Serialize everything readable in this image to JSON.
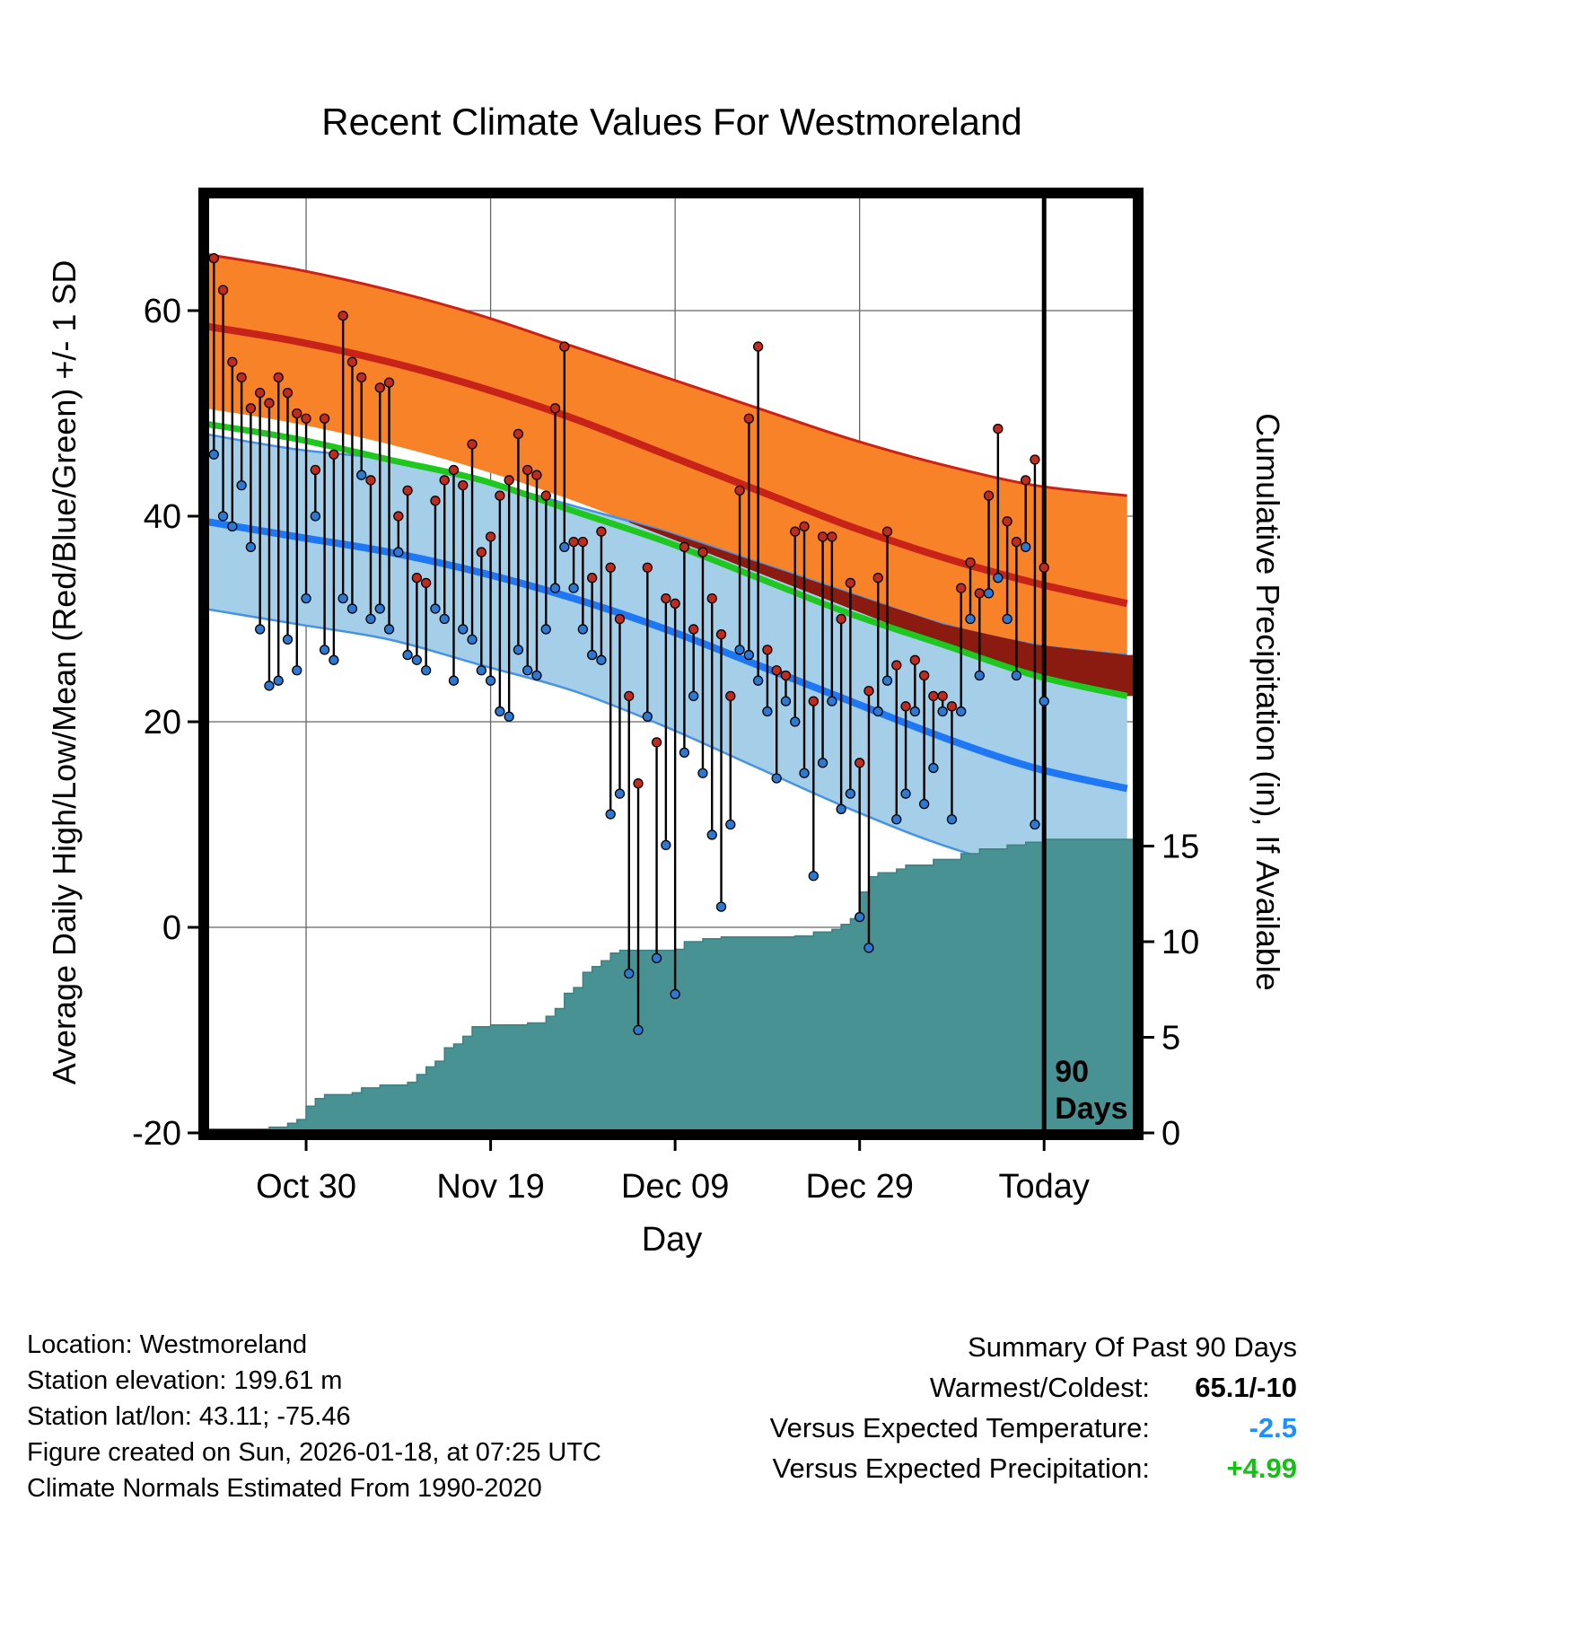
{
  "title": "Recent Climate Values For Westmoreland",
  "axes": {
    "left_label": "Average Daily High/Low/Mean (Red/Blue/Green) +/- 1 SD",
    "right_label": "Cumulative Precipitation (in), If Available",
    "x_label": "Day",
    "x_ticks": [
      {
        "label": "Oct 30",
        "day": 11
      },
      {
        "label": "Nov 19",
        "day": 31
      },
      {
        "label": "Dec 09",
        "day": 51
      },
      {
        "label": "Dec 29",
        "day": 71
      },
      {
        "label": "Today",
        "day": 91
      }
    ],
    "left_ticks": [
      60,
      40,
      20,
      0,
      -20
    ],
    "right_ticks": [
      15,
      10,
      5,
      0
    ]
  },
  "annotation": {
    "line1": "90",
    "line2": "Days"
  },
  "footer": {
    "lines": [
      "Location: Westmoreland",
      "Station elevation: 199.61 m",
      "Station lat/lon: 43.11; -75.46",
      "Figure created on Sun, 2026-01-18, at 07:25 UTC",
      "Climate Normals Estimated From 1990-2020"
    ]
  },
  "summary": {
    "title": "Summary Of Past 90 Days",
    "rows": [
      {
        "label": "Warmest/Coldest:",
        "value": "65.1/-10",
        "color": "#000000"
      },
      {
        "label": "Versus Expected Temperature:",
        "value": "-2.5",
        "color": "#1e8fff"
      },
      {
        "label": "Versus Expected Precipitation:",
        "value": "+4.99",
        "color": "#12c112"
      }
    ]
  },
  "colors": {
    "high_band": "#f88228",
    "high_line": "#c82319",
    "overlap_band": "#8b1a11",
    "low_band": "#a5cee8",
    "low_band_edge": "#4593e6",
    "low_line": "#1e78f5",
    "mean_line": "#1ec81e",
    "precip_fill": "#489294",
    "precip_edge": "#3d8082",
    "high_dot": "#bf2b1f",
    "low_dot": "#2d78d2",
    "range_line": "#000000",
    "grid": "#666666"
  },
  "chart_data": {
    "type": "line",
    "title": "Recent Climate Values For Westmoreland",
    "xlabel": "Day",
    "ylabel_left": "Average Daily High/Low/Mean (Red/Blue/Green) +/- 1 SD",
    "ylabel_right": "Cumulative Precipitation (in), If Available",
    "x_domain": [
      0,
      101
    ],
    "today_day": 91,
    "temp_axis": {
      "ticks": [
        -20,
        0,
        20,
        40,
        60
      ],
      "ylim": [
        -20,
        71
      ]
    },
    "precip_axis": {
      "ticks": [
        0,
        5,
        10,
        15
      ],
      "ylim": [
        0,
        22
      ]
    },
    "normals": {
      "sample_days": [
        0,
        10,
        20,
        30,
        40,
        50,
        60,
        70,
        80,
        90,
        100
      ],
      "high_upper": [
        65.5,
        64,
        62,
        59.5,
        56.5,
        53.5,
        50.5,
        47.5,
        45,
        43,
        42
      ],
      "high_mean": [
        58.5,
        57,
        55,
        52.5,
        49.5,
        46,
        42.5,
        39,
        36,
        33.5,
        31.5
      ],
      "high_lower": [
        50.5,
        49,
        47,
        44.5,
        41.5,
        38,
        34.5,
        31,
        27.5,
        24.5,
        22.5
      ],
      "low_upper": [
        48,
        46.5,
        45.5,
        43.5,
        41,
        38.5,
        35.5,
        32.5,
        29.5,
        27.5,
        26.5
      ],
      "low_mean": [
        39.5,
        38,
        36.5,
        34.5,
        32,
        29,
        25.5,
        22,
        18.5,
        15.5,
        13.5
      ],
      "low_lower": [
        31,
        29.5,
        28,
        25.5,
        23,
        19.5,
        15.5,
        11.5,
        8,
        5.5,
        4.5
      ],
      "mean": [
        49,
        47.5,
        45.5,
        43.5,
        40.5,
        37.5,
        34,
        30.5,
        27.5,
        24.5,
        22.5
      ]
    },
    "daily": {
      "start_day": 1,
      "start_date": "Oct 20",
      "highs": [
        65.1,
        62,
        55,
        53.5,
        50.5,
        52,
        51,
        53.5,
        52,
        50,
        49.5,
        44.5,
        49.5,
        46,
        59.5,
        55,
        53.5,
        43.5,
        52.5,
        53,
        40,
        42.5,
        34,
        33.5,
        41.5,
        43.5,
        44.5,
        43,
        47,
        36.5,
        38,
        42,
        43.5,
        48,
        44.5,
        44,
        42,
        50.5,
        56.5,
        37.5,
        37.5,
        34,
        38.5,
        35,
        30,
        22.5,
        14,
        35,
        18,
        32,
        31.5,
        37,
        29,
        36.5,
        32,
        28.5,
        22.5,
        42.5,
        49.5,
        56.5,
        27,
        25,
        24.5,
        38.5,
        39,
        22,
        38,
        38,
        30,
        33.5,
        16,
        23,
        34,
        38.5,
        25.5,
        21.5,
        26,
        24.5,
        22.5,
        22.5,
        21.5,
        33,
        35.5,
        32.5,
        42,
        48.5,
        39.5,
        37.5,
        43.5,
        45.5,
        35
      ],
      "lows": [
        46,
        40,
        39,
        43,
        37,
        29,
        23.5,
        24,
        28,
        25,
        32,
        40,
        27,
        26,
        32,
        31,
        44,
        30,
        31,
        29,
        36.5,
        26.5,
        26,
        25,
        31,
        30,
        24,
        29,
        28,
        25,
        24,
        21,
        20.5,
        27,
        25,
        24.5,
        29,
        33,
        37,
        33,
        29,
        26.5,
        26,
        11,
        13,
        -4.5,
        -10,
        20.5,
        -3,
        8,
        -6.5,
        17,
        22.5,
        15,
        9,
        2,
        10,
        27,
        26.5,
        24,
        21,
        14.5,
        22,
        20,
        15,
        5,
        16,
        22,
        11.5,
        13,
        1,
        -2,
        21,
        24,
        10.5,
        13,
        21,
        12,
        15.5,
        21,
        10.5,
        21,
        30,
        24.5,
        32.5,
        34,
        30,
        24.5,
        37,
        10,
        22
      ]
    },
    "precip_cumulative": [
      [
        0,
        0.2
      ],
      [
        7,
        0.3
      ],
      [
        9,
        0.5
      ],
      [
        10,
        0.7
      ],
      [
        11,
        1.4
      ],
      [
        12,
        1.8
      ],
      [
        13,
        2.0
      ],
      [
        16,
        2.1
      ],
      [
        17,
        2.35
      ],
      [
        19,
        2.5
      ],
      [
        22,
        2.65
      ],
      [
        23,
        3.05
      ],
      [
        24,
        3.45
      ],
      [
        25,
        3.75
      ],
      [
        26,
        4.45
      ],
      [
        27,
        4.65
      ],
      [
        28,
        5.05
      ],
      [
        29,
        5.55
      ],
      [
        31,
        5.65
      ],
      [
        35,
        5.75
      ],
      [
        37,
        6.1
      ],
      [
        38,
        6.5
      ],
      [
        39,
        7.3
      ],
      [
        40,
        7.6
      ],
      [
        41,
        8.4
      ],
      [
        42,
        8.7
      ],
      [
        43,
        9.0
      ],
      [
        44,
        9.4
      ],
      [
        45,
        9.55
      ],
      [
        51,
        9.6
      ],
      [
        52,
        10.0
      ],
      [
        54,
        10.15
      ],
      [
        56,
        10.25
      ],
      [
        64,
        10.3
      ],
      [
        66,
        10.5
      ],
      [
        68,
        10.65
      ],
      [
        69,
        10.9
      ],
      [
        70,
        11.2
      ],
      [
        71,
        12.6
      ],
      [
        72,
        13.4
      ],
      [
        73,
        13.6
      ],
      [
        75,
        13.8
      ],
      [
        76,
        14.0
      ],
      [
        79,
        14.3
      ],
      [
        82,
        14.6
      ],
      [
        84,
        14.85
      ],
      [
        87,
        15.05
      ],
      [
        89,
        15.2
      ],
      [
        91,
        15.35
      ],
      [
        101,
        15.45
      ]
    ]
  }
}
